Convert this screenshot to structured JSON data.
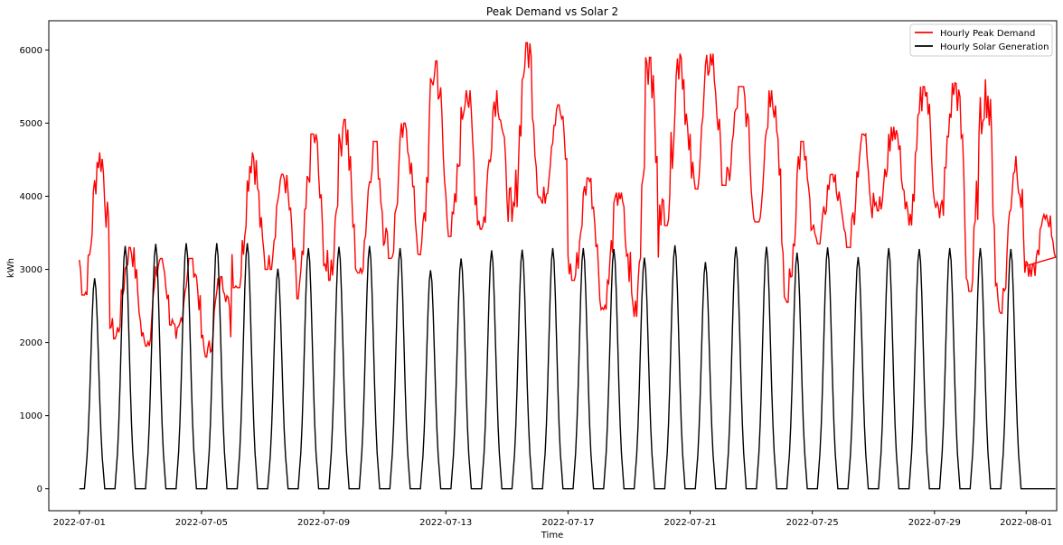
{
  "chart_data": {
    "type": "line",
    "title": "Peak Demand vs Solar 2",
    "xlabel": "Time",
    "ylabel": "kWh",
    "x_start": "2022-07-01",
    "x_end": "2022-08-01",
    "xlim": [
      "2022-06-30",
      "2022-08-02"
    ],
    "ylim": [
      -300,
      6400
    ],
    "xticks": [
      "2022-07-01",
      "2022-07-05",
      "2022-07-09",
      "2022-07-13",
      "2022-07-17",
      "2022-07-21",
      "2022-07-25",
      "2022-07-29",
      "2022-08-01"
    ],
    "yticks": [
      0,
      1000,
      2000,
      3000,
      4000,
      5000,
      6000
    ],
    "grid": false,
    "legend_position": "top-right",
    "series": [
      {
        "name": "Hourly Peak Demand",
        "color": "#ff0000",
        "resolution": "hourly",
        "daily_max": [
          4600,
          3300,
          3150,
          3150,
          2900,
          4600,
          4300,
          4850,
          5050,
          4750,
          5000,
          5850,
          5450,
          5450,
          6100,
          5250,
          4250,
          4050,
          5900,
          5950,
          5950,
          5500,
          5450,
          4750,
          4300,
          4850,
          4950,
          5500,
          5550,
          5600,
          4550,
          3750
        ],
        "daily_min": [
          2650,
          2050,
          1950,
          2050,
          1800,
          2750,
          3000,
          2600,
          2850,
          2950,
          3150,
          3200,
          3450,
          3550,
          3650,
          3900,
          2850,
          2450,
          2350,
          3600,
          4100,
          4150,
          3650,
          2550,
          3350,
          3300,
          3800,
          3600,
          3700,
          2700,
          2400,
          2900
        ]
      },
      {
        "name": "Hourly Solar Generation",
        "color": "#000000",
        "resolution": "hourly",
        "daily_peak": [
          2880,
          3320,
          3350,
          3360,
          3360,
          3360,
          3010,
          3290,
          3310,
          3320,
          3290,
          2990,
          3150,
          3260,
          3270,
          3290,
          3290,
          3280,
          3160,
          3330,
          3100,
          3310,
          3310,
          3230,
          3300,
          3170,
          3290,
          3280,
          3290,
          3290,
          3280,
          0
        ],
        "baseline": 0
      }
    ]
  }
}
